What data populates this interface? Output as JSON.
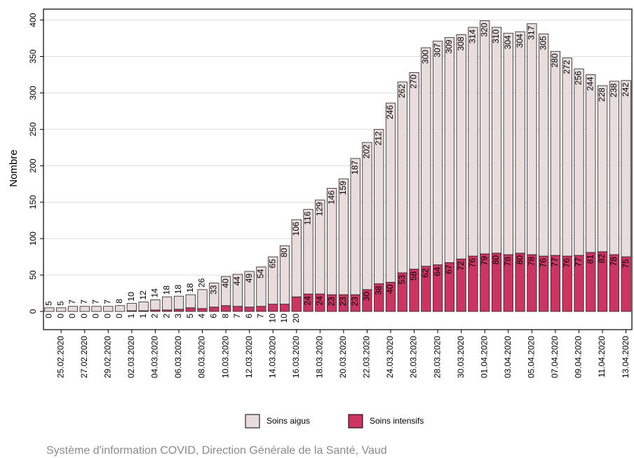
{
  "chart_data": {
    "type": "stacked_bar",
    "y_label": "Nombre",
    "source": "Système d'information COVID, Direction Générale de la Santé, Vaud",
    "categories": [
      null,
      "25.02.2020",
      null,
      "27.02.2020",
      null,
      "29.02.2020",
      null,
      "02.03.2020",
      null,
      "04.03.2020",
      null,
      "06.03.2020",
      null,
      "08.03.2020",
      null,
      "10.03.2020",
      null,
      "12.03.2020",
      null,
      "14.03.2020",
      null,
      "16.03.2020",
      null,
      "18.03.2020",
      null,
      "20.03.2020",
      null,
      "22.03.2020",
      null,
      "24.03.2020",
      null,
      "26.03.2020",
      null,
      "28.03.2020",
      null,
      "30.03.2020",
      null,
      "01.04.2020",
      null,
      "03.04.2020",
      null,
      "05.04.2020",
      null,
      "07.04.2020",
      null,
      "09.04.2020",
      null,
      "11.04.2020",
      null,
      "13.04.2020"
    ],
    "series": [
      {
        "name": "Soins intensifs",
        "color": "#cc3462",
        "values": [
          0,
          0,
          0,
          0,
          0,
          0,
          0,
          1,
          1,
          2,
          2,
          3,
          5,
          4,
          6,
          8,
          7,
          6,
          7,
          10,
          10,
          20,
          24,
          24,
          23,
          23,
          23,
          30,
          38,
          40,
          53,
          58,
          62,
          64,
          67,
          72,
          76,
          79,
          80,
          78,
          80,
          78,
          76,
          77,
          76,
          77,
          81,
          82,
          78,
          75
        ]
      },
      {
        "name": "Soins aigus",
        "color": "#e8dcdc",
        "values": [
          5,
          5,
          7,
          7,
          7,
          7,
          8,
          10,
          12,
          14,
          18,
          18,
          18,
          26,
          33,
          40,
          44,
          49,
          54,
          65,
          80,
          106,
          116,
          129,
          146,
          159,
          187,
          202,
          212,
          246,
          262,
          270,
          300,
          307,
          309,
          308,
          314,
          320,
          310,
          304,
          304,
          317,
          305,
          280,
          272,
          256,
          244,
          228,
          238,
          242
        ]
      }
    ],
    "ylim": [
      -25,
      415
    ],
    "yticks": [
      0,
      50,
      100,
      150,
      200,
      250,
      300,
      350,
      400
    ],
    "grid": true
  }
}
